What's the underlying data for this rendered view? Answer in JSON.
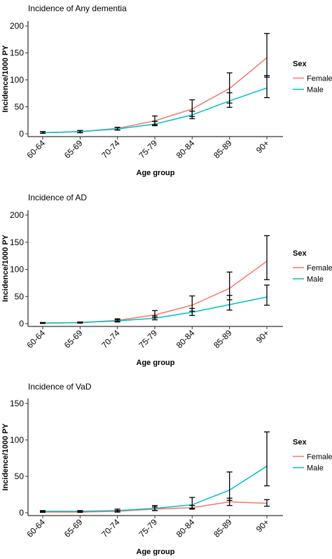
{
  "chart_data": [
    {
      "type": "line",
      "title": "Incidence of Any dementia",
      "xlabel": "Age group",
      "ylabel": "Incidence/1000 PY",
      "categories": [
        "60-64",
        "65-69",
        "70-74",
        "75-79",
        "80-84",
        "85-89",
        "90+"
      ],
      "ylim": [
        0,
        200
      ],
      "yticks": [
        0,
        50,
        100,
        150,
        200
      ],
      "legend_title": "Sex",
      "legend_position": "right",
      "series": [
        {
          "name": "Female",
          "color": "#F8766D",
          "values": [
            2,
            4,
            10,
            24,
            46,
            84,
            141
          ],
          "ci_low": [
            1,
            2,
            7,
            17,
            32,
            57,
            105
          ],
          "ci_high": [
            4,
            6,
            12,
            33,
            63,
            113,
            186
          ]
        },
        {
          "name": "Male",
          "color": "#00BFC4",
          "values": [
            2,
            4,
            9,
            18,
            35,
            61,
            85
          ],
          "ci_low": [
            1,
            2,
            7,
            15,
            28,
            49,
            67
          ],
          "ci_high": [
            4,
            6,
            12,
            23,
            42,
            76,
            108
          ]
        }
      ]
    },
    {
      "type": "line",
      "title": "Incidence of AD",
      "xlabel": "Age group",
      "ylabel": "Incidence/1000 PY",
      "categories": [
        "60-64",
        "65-69",
        "70-74",
        "75-79",
        "80-84",
        "85-89",
        "90+"
      ],
      "ylim": [
        0,
        200
      ],
      "yticks": [
        0,
        50,
        100,
        150,
        200
      ],
      "legend_title": "Sex",
      "legend_position": "right",
      "series": [
        {
          "name": "Female",
          "color": "#F8766D",
          "values": [
            1,
            2,
            6,
            16,
            34,
            65,
            115
          ],
          "ci_low": [
            0.5,
            1,
            4,
            11,
            23,
            44,
            81
          ],
          "ci_high": [
            2,
            3,
            9,
            24,
            51,
            95,
            162
          ]
        },
        {
          "name": "Male",
          "color": "#00BFC4",
          "values": [
            1,
            2,
            5,
            10,
            21,
            35,
            49
          ],
          "ci_low": [
            0.5,
            1,
            3,
            7,
            15,
            25,
            34
          ],
          "ci_high": [
            2,
            3,
            7,
            14,
            28,
            52,
            71
          ]
        }
      ]
    },
    {
      "type": "line",
      "title": "Incidence of VaD",
      "xlabel": "Age group",
      "ylabel": "Incidence/1000 PY",
      "categories": [
        "60-64",
        "65-69",
        "70-74",
        "75-79",
        "80-84",
        "85-89",
        "90+"
      ],
      "ylim": [
        0,
        150
      ],
      "yticks": [
        0,
        50,
        100,
        150
      ],
      "legend_title": "Sex",
      "legend_position": "right",
      "series": [
        {
          "name": "Female",
          "color": "#F8766D",
          "values": [
            1,
            1,
            2,
            5,
            7,
            15,
            13
          ],
          "ci_low": [
            0.5,
            0.5,
            1,
            3,
            5,
            10,
            9
          ],
          "ci_high": [
            2,
            2,
            3,
            8,
            10,
            20,
            18
          ]
        },
        {
          "name": "Male",
          "color": "#00BFC4",
          "values": [
            2,
            2,
            3,
            6,
            11,
            31,
            64
          ],
          "ci_low": [
            1,
            1,
            1,
            3,
            6,
            17,
            37
          ],
          "ci_high": [
            3,
            3,
            5,
            10,
            21,
            56,
            111
          ]
        }
      ]
    }
  ]
}
